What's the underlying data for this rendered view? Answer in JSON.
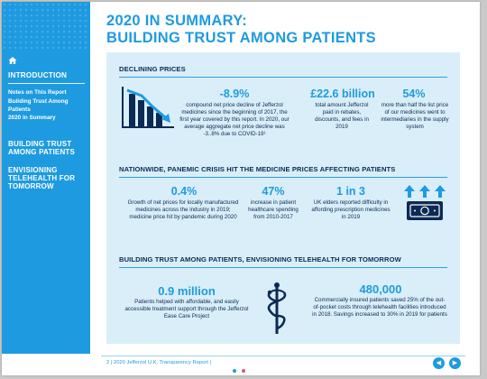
{
  "sidebar": {
    "intro_label": "INTRODUCTION",
    "sub_items": [
      "Notes on This Report",
      "Building Trust Among Patients",
      "2020  in Summary"
    ],
    "section2_label": "BUILDING TRUST AMONG PATIENTS",
    "section3_label": "ENVISIONING TELEHEALTH FOR TOMORROW"
  },
  "header": {
    "title_line1": "2020 IN SUMMARY:",
    "title_line2": "BUILDING TRUST AMONG PATIENTS"
  },
  "sections": [
    {
      "heading": "DECLINING PRICES",
      "stats": [
        {
          "value": "-8.9%",
          "desc": "compound net price decline of Jefferzol medicines since the beginning of 2017, the  first year covered by this report. In 2020, our  average aggregate net price decline was -3..8% due to COVID-19¹"
        },
        {
          "value": "£22.6 billion",
          "desc": "total amount Jefferzol paid in rebates, discounts, and fees in 2019"
        },
        {
          "value": "54%",
          "desc": "more than half the list price of our medicines  went to intermediaries  in the supply system"
        }
      ]
    },
    {
      "heading": "NATIONWIDE, PANEMIC CRISIS HIT THE MEDICINE PRICES AFFECTING PATIENTS",
      "stats": [
        {
          "value": "0.4%",
          "desc": "Growth of net prices for locally manufactured medicines across the industry in 2019; medicine price hit by pandemic during 2020"
        },
        {
          "value": "47%",
          "desc": "increase in patient healthcare spending  from 2010-2017"
        },
        {
          "value": "1  in 3",
          "desc": "UK elders reported difficulty in affording prescription medicines in 2019"
        }
      ]
    },
    {
      "heading": "BUILDING TRUST AMONG PATIENTS, ENVISIONING TELEHEALTH FOR TOMORROW",
      "stats": [
        {
          "value": "0.9 million",
          "desc": "Patients helped with  affordable, and easily accessible treatment support through the Jefferzol Ease Care Project"
        },
        {
          "value": "480,000",
          "desc": "Commercially insured patients saved 25% of the out-of-pocket costs through telehealth facilities introduced in 2018. Savings increased to 30% in 2019 for patients"
        }
      ]
    }
  ],
  "footer": {
    "page_number": "2",
    "report_text": "| 2020 Jefferzol U.K. Transparency Report |"
  },
  "icons": {
    "home": "home-icon",
    "chart": "declining-chart-icon",
    "arrows": "rising-arrows-icon",
    "money": "banknote-icon",
    "medical": "caduceus-icon",
    "prev": "prev-page-icon",
    "next": "next-page-icon"
  },
  "colors": {
    "accent": "#1e9be0",
    "navy": "#0d2a55",
    "panel": "#d9eef8",
    "dot_active": "#1e9be0",
    "dot_inactive": "#e44d8a"
  }
}
